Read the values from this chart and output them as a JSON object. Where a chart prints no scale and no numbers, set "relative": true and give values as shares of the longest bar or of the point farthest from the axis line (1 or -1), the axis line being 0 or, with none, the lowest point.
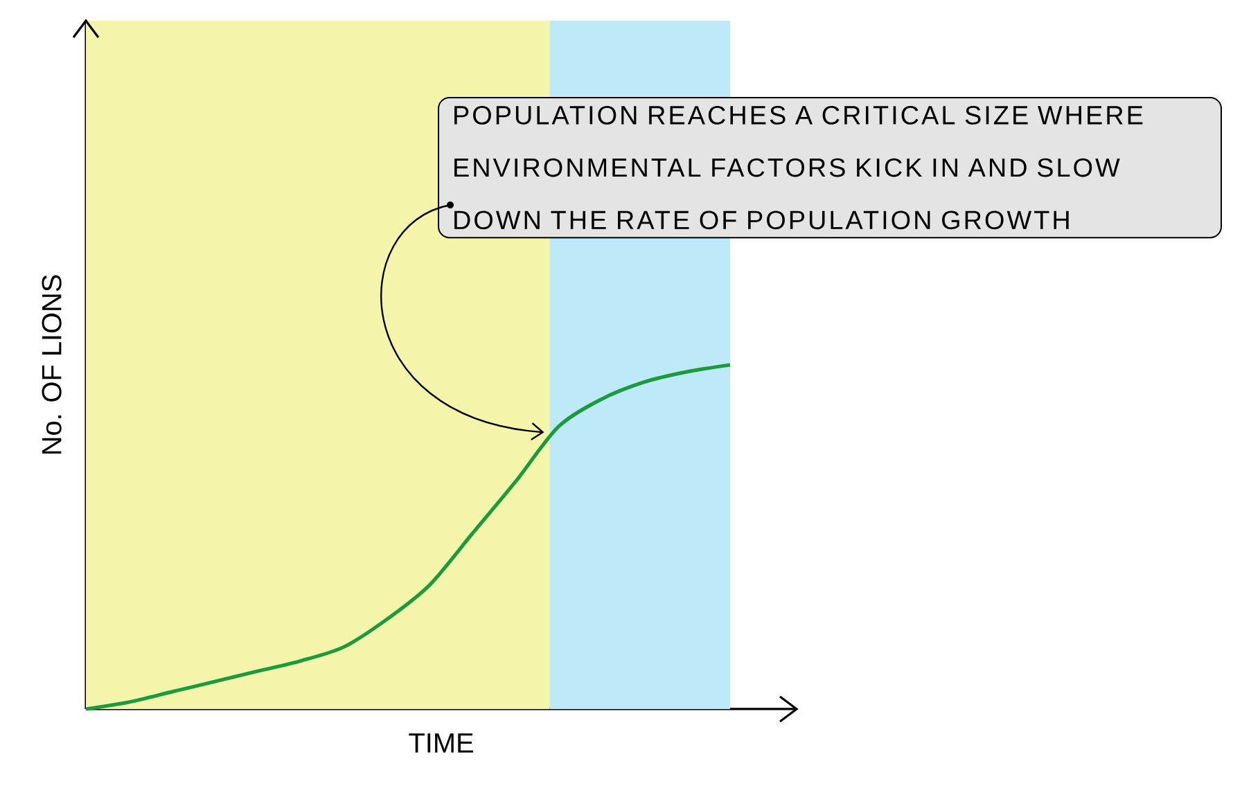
{
  "chart_data": {
    "type": "line",
    "relative": true,
    "xlabel": "TIME",
    "ylabel": "No. OF LIONS",
    "categories": [
      null,
      null,
      null,
      null,
      null,
      null,
      null,
      null,
      null,
      null,
      null,
      null,
      null,
      null,
      null,
      null
    ],
    "series": [
      {
        "color": "#1a9c3c",
        "values": [
          0,
          0.02,
          0.05,
          0.08,
          0.11,
          0.14,
          0.18,
          0.26,
          0.36,
          0.51,
          0.66,
          0.82,
          0.9,
          0.95,
          0.98,
          1
        ]
      }
    ],
    "annotations": [
      "POPULATION REACHES A CRITICAL SIZE WHERE ENVIRONMENTAL FACTORS KICK IN AND SLOW DOWN THE RATE OF POPULATION GROWTH"
    ],
    "marker": "none",
    "line_style": "solid"
  }
}
